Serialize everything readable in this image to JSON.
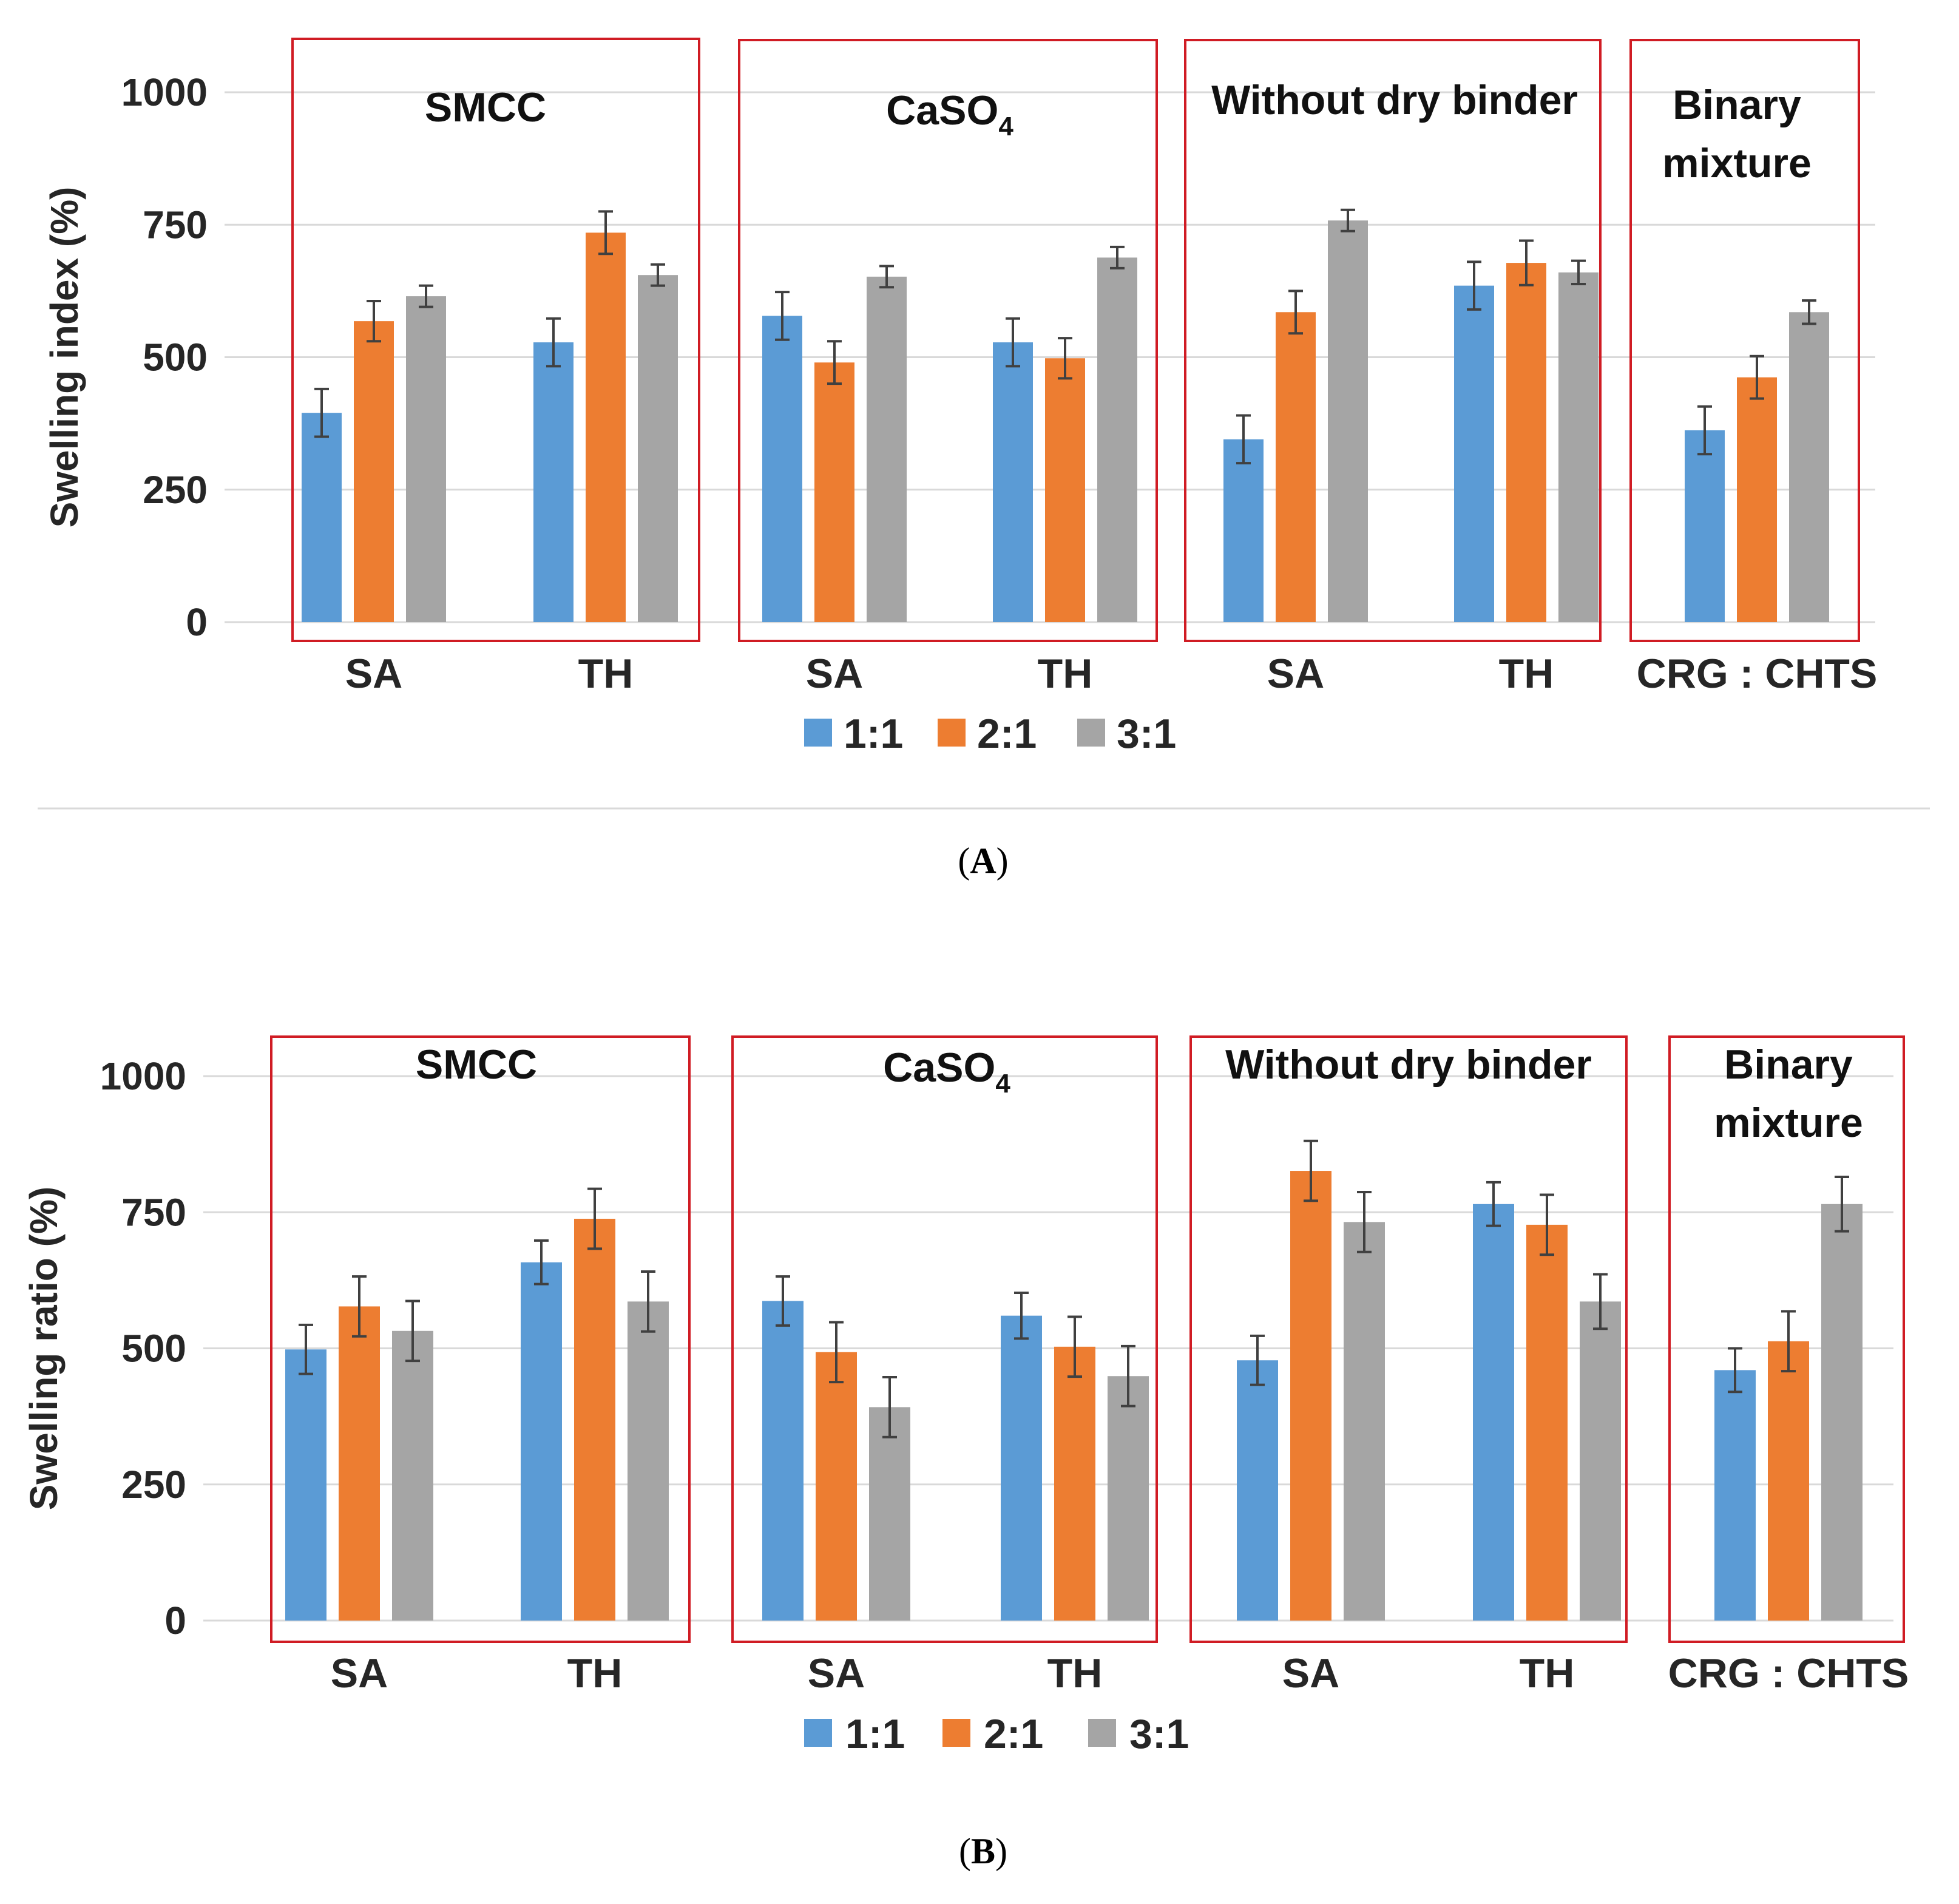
{
  "colors": {
    "s1": "#5b9bd5",
    "s2": "#ed7d31",
    "s3": "#a5a5a5",
    "box": "#d01c24",
    "grid": "#d9d9d9",
    "err": "#404040"
  },
  "chart_data": [
    {
      "type": "bar",
      "panel_label": "A",
      "ylabel": "Swelling index (%)",
      "ylim": [
        0,
        1000
      ],
      "yticks": [
        0,
        250,
        500,
        750,
        1000
      ],
      "grid": true,
      "legend_position": "bottom",
      "categories": [
        "SA",
        "TH",
        "SA",
        "TH",
        "SA",
        "TH",
        "CRG : CHTS"
      ],
      "groups": [
        {
          "title": "SMCC",
          "subscript": "",
          "categories": [
            0,
            1
          ]
        },
        {
          "title": "CaSO",
          "subscript": "4",
          "categories": [
            2,
            3
          ]
        },
        {
          "title": "Without dry binder",
          "subscript": "",
          "categories": [
            4,
            5
          ]
        },
        {
          "title": "Binary\nmixture",
          "subscript": "",
          "categories": [
            6
          ]
        }
      ],
      "series": [
        {
          "name": "1:1",
          "values": [
            395,
            528,
            578,
            528,
            345,
            635,
            362
          ],
          "errors": [
            45,
            45,
            45,
            45,
            45,
            45,
            45
          ]
        },
        {
          "name": "2:1",
          "values": [
            568,
            735,
            490,
            498,
            585,
            678,
            462
          ],
          "errors": [
            38,
            40,
            40,
            38,
            40,
            42,
            40
          ]
        },
        {
          "name": "3:1",
          "values": [
            615,
            655,
            652,
            688,
            758,
            660,
            585
          ],
          "errors": [
            20,
            20,
            20,
            20,
            20,
            22,
            22
          ]
        }
      ]
    },
    {
      "type": "bar",
      "panel_label": "B",
      "ylabel": "Swelling ratio (%)",
      "ylim": [
        0,
        1000
      ],
      "yticks": [
        0,
        250,
        500,
        750,
        1000
      ],
      "grid": true,
      "legend_position": "bottom",
      "categories": [
        "SA",
        "TH",
        "SA",
        "TH",
        "SA",
        "TH",
        "CRG : CHTS"
      ],
      "groups": [
        {
          "title": "SMCC",
          "subscript": "",
          "categories": [
            0,
            1
          ]
        },
        {
          "title": "CaSO",
          "subscript": "4",
          "categories": [
            2,
            3
          ]
        },
        {
          "title": "Without dry binder",
          "subscript": "",
          "categories": [
            4,
            5
          ]
        },
        {
          "title": "Binary\nmixture",
          "subscript": "",
          "categories": [
            6
          ]
        }
      ],
      "series": [
        {
          "name": "1:1",
          "values": [
            498,
            658,
            587,
            560,
            478,
            765,
            460
          ],
          "errors": [
            45,
            40,
            45,
            42,
            45,
            40,
            40
          ]
        },
        {
          "name": "2:1",
          "values": [
            577,
            738,
            493,
            503,
            826,
            727,
            513
          ],
          "errors": [
            55,
            55,
            55,
            55,
            55,
            55,
            55
          ]
        },
        {
          "name": "3:1",
          "values": [
            532,
            586,
            392,
            449,
            732,
            586,
            765
          ],
          "errors": [
            55,
            55,
            55,
            55,
            55,
            50,
            50
          ]
        }
      ]
    }
  ]
}
